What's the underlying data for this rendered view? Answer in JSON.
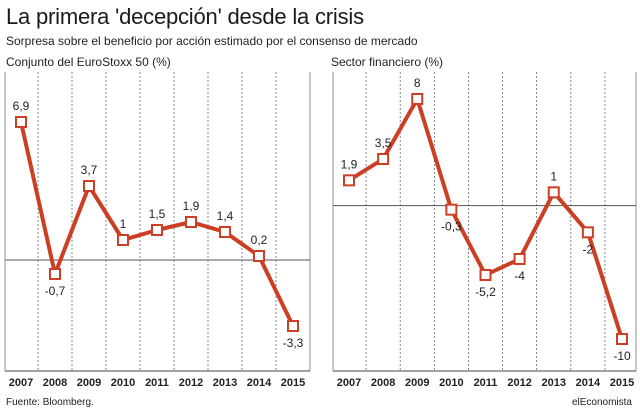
{
  "title": "La primera 'decepción' desde la crisis",
  "subtitle": "Sorpresa sobre el beneficio por acción estimado por el consenso de mercado",
  "source": "Fuente: Bloomberg.",
  "brand": "elEconomista",
  "colors": {
    "line": "#cc3f24",
    "marker_fill": "#ffffff",
    "baseline": "#555555",
    "grid": "#555555"
  },
  "chart_data": [
    {
      "type": "line",
      "title": "Conjunto del EuroStoxx 50 (%)",
      "categories": [
        "2007",
        "2008",
        "2009",
        "2010",
        "2011",
        "2012",
        "2013",
        "2014",
        "2015"
      ],
      "values": [
        6.9,
        -0.7,
        3.7,
        1,
        1.5,
        1.9,
        1.4,
        0.2,
        -3.3
      ],
      "labels": [
        "6,9",
        "-0,7",
        "3,7",
        "1",
        "1,5",
        "1,9",
        "1,4",
        "0,2",
        "-3,3"
      ],
      "ylim": [
        -3.3,
        6.9
      ],
      "grid": "vertical-dashed"
    },
    {
      "type": "line",
      "title": "Sector financiero (%)",
      "categories": [
        "2007",
        "2008",
        "2009",
        "2010",
        "2011",
        "2012",
        "2013",
        "2014",
        "2015"
      ],
      "values": [
        1.9,
        3.5,
        8,
        -0.3,
        -5.2,
        -4,
        1,
        -2,
        -10
      ],
      "labels": [
        "1,9",
        "3,5",
        "8",
        "-0,3",
        "-5,2",
        "-4",
        "1",
        "-2",
        "-10"
      ],
      "ylim": [
        -10,
        8
      ],
      "grid": "vertical-dashed"
    }
  ]
}
